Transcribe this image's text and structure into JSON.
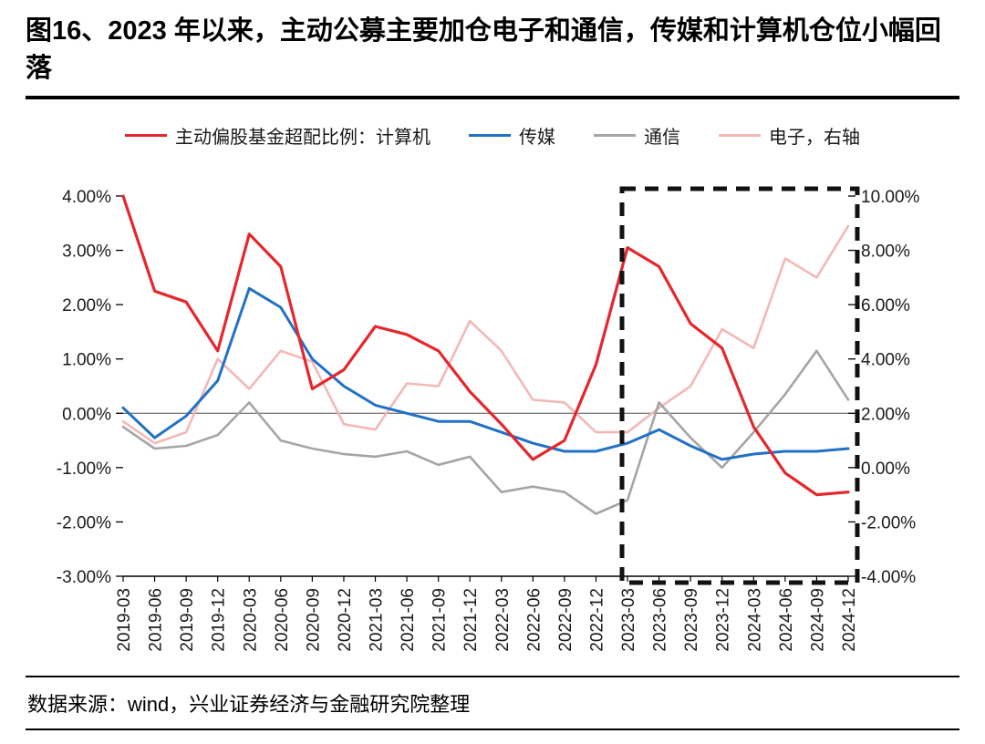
{
  "chart_data": {
    "type": "line",
    "title": "图16、2023 年以来，主动公募主要加仓电子和通信，传媒和计算机仓位小幅回落",
    "source_note": "数据来源：wind，兴业证券经济与金融研究院整理",
    "legend_position": "top",
    "grid": false,
    "xlabel": "",
    "ylabel": "",
    "categories": [
      "2019-03",
      "2019-06",
      "2019-09",
      "2019-12",
      "2020-03",
      "2020-06",
      "2020-09",
      "2020-12",
      "2021-03",
      "2021-06",
      "2021-09",
      "2021-12",
      "2022-03",
      "2022-06",
      "2022-09",
      "2022-12",
      "2023-03",
      "2023-06",
      "2023-09",
      "2023-12",
      "2024-03",
      "2024-06",
      "2024-09",
      "2024-12"
    ],
    "series": [
      {
        "id": "computer",
        "name": "主动偏股基金超配比例：计算机",
        "axis": "left",
        "color": "#e5262c",
        "stroke_width": 3.2,
        "values": [
          4.0,
          2.25,
          2.05,
          1.15,
          3.3,
          2.7,
          0.45,
          0.8,
          1.6,
          1.45,
          1.15,
          0.4,
          -0.2,
          -0.85,
          -0.5,
          0.9,
          3.05,
          2.7,
          1.65,
          1.2,
          -0.25,
          -1.1,
          -1.5,
          -1.45
        ]
      },
      {
        "id": "media",
        "name": "传媒",
        "axis": "left",
        "color": "#2171c7",
        "stroke_width": 3,
        "values": [
          0.1,
          -0.45,
          -0.05,
          0.6,
          2.3,
          1.95,
          1.0,
          0.5,
          0.15,
          0.0,
          -0.15,
          -0.15,
          -0.35,
          -0.55,
          -0.7,
          -0.7,
          -0.55,
          -0.3,
          -0.6,
          -0.85,
          -0.75,
          -0.7,
          -0.7,
          -0.65
        ]
      },
      {
        "id": "telecom",
        "name": "通信",
        "axis": "left",
        "color": "#a5a5a5",
        "stroke_width": 2.6,
        "values": [
          -0.25,
          -0.65,
          -0.6,
          -0.4,
          0.2,
          -0.5,
          -0.65,
          -0.75,
          -0.8,
          -0.7,
          -0.95,
          -0.8,
          -1.45,
          -1.35,
          -1.45,
          -1.85,
          -1.6,
          0.2,
          -0.45,
          -1.0,
          -0.35,
          0.35,
          1.15,
          0.25
        ]
      },
      {
        "id": "electronics",
        "name": "电子，右轴",
        "axis": "right",
        "color": "#f3b8b6",
        "stroke_width": 2.6,
        "values": [
          1.7,
          0.9,
          1.3,
          4.0,
          2.9,
          4.3,
          3.9,
          1.6,
          1.4,
          3.1,
          3.0,
          5.4,
          4.3,
          2.5,
          2.4,
          1.3,
          1.3,
          2.2,
          3.0,
          5.1,
          4.4,
          7.7,
          7.0,
          8.9
        ]
      }
    ],
    "left_axis": {
      "min": -3,
      "max": 4,
      "tick_step": 1,
      "ticks": [
        "4.00%",
        "3.00%",
        "2.00%",
        "1.00%",
        "0.00%",
        "-1.00%",
        "-2.00%",
        "-3.00%"
      ]
    },
    "right_axis": {
      "min": -4,
      "max": 10,
      "tick_step": 2,
      "ticks": [
        "10.00%",
        "8.00%",
        "6.00%",
        "4.00%",
        "2.00%",
        "0.00%",
        "-2.00%",
        "-4.00%"
      ]
    },
    "highlight_box": {
      "from_category": "2023-03",
      "to": "right-edge",
      "style": "black-dashed"
    },
    "colors": {
      "axis": "#000000",
      "zero_line": "#7f7f7f",
      "text": "#1a1a1a",
      "highlight_box": "#111111",
      "background": "#ffffff"
    }
  }
}
